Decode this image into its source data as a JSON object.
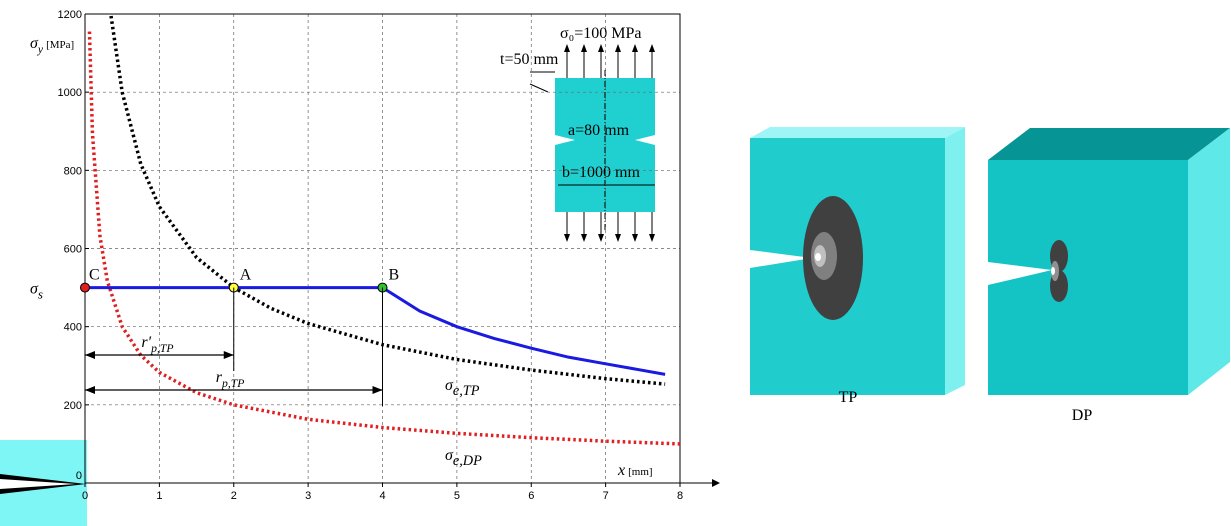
{
  "chart_data": {
    "type": "line",
    "y_label": {
      "symbol": "σ",
      "sub": "y",
      "unit": "[MPa]"
    },
    "x_label": {
      "symbol": "x",
      "unit": "[mm]"
    },
    "xlim": [
      0,
      8
    ],
    "ylim": [
      0,
      1200
    ],
    "xticks": [
      0,
      1,
      2,
      3,
      4,
      5,
      6,
      7,
      8
    ],
    "yticks": [
      0,
      200,
      400,
      600,
      800,
      1000,
      1200
    ],
    "grid": true,
    "series": [
      {
        "name": {
          "symbol": "σ",
          "sub": "e,TP"
        },
        "color": "#000000",
        "style": "dotted",
        "x": [
          0.35,
          0.5,
          0.75,
          1,
          1.5,
          2,
          2.5,
          3,
          4,
          5,
          6,
          7,
          7.8
        ],
        "values": [
          1195,
          1000,
          816,
          707,
          577,
          500,
          447,
          408,
          354,
          316,
          289,
          267,
          253
        ]
      },
      {
        "name": {
          "symbol": "σ",
          "sub": "e,DP"
        },
        "color": "#e02020",
        "style": "dotted",
        "x": [
          0.06,
          0.1,
          0.2,
          0.3,
          0.5,
          0.75,
          1,
          1.5,
          2,
          3,
          4,
          5,
          6,
          7,
          8
        ],
        "values": [
          1155,
          895,
          633,
          517,
          400,
          327,
          283,
          231,
          200,
          163,
          142,
          127,
          116,
          107,
          100
        ]
      },
      {
        "color": "#1a1ae0",
        "style": "solid",
        "x": [
          0,
          2,
          4,
          4.5,
          5,
          5.5,
          6,
          6.5,
          7,
          7.8
        ],
        "values": [
          500,
          500,
          500,
          440,
          400,
          370,
          345,
          322,
          305,
          278
        ]
      }
    ],
    "points": [
      {
        "label": "C",
        "x": 0,
        "y": 500,
        "color": "#e02020"
      },
      {
        "label": "A",
        "x": 2,
        "y": 500,
        "color": "#ffff40"
      },
      {
        "label": "B",
        "x": 4,
        "y": 500,
        "color": "#30c030"
      }
    ],
    "yield_label": {
      "symbol": "σ",
      "sub": "s"
    },
    "dimensions": [
      {
        "label": {
          "symbol": "r′",
          "sub": "p,TP"
        },
        "value": 2
      },
      {
        "label": {
          "symbol": "r",
          "sub": "p,TP"
        },
        "value": 4
      }
    ],
    "inset": {
      "stress": "σ₀=100 MPa",
      "thickness": "t=50 mm",
      "crack": "a=80 mm",
      "width": "b=1000 mm"
    },
    "models": [
      "TP",
      "DP"
    ]
  }
}
